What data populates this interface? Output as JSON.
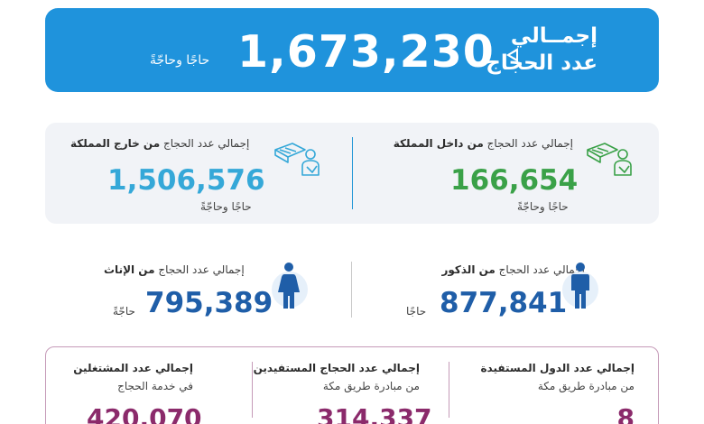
{
  "banner": {
    "title_line1": "إجمــالي",
    "title_line2": "عدد الحجاج",
    "total": "1,673,230",
    "unit": "حاجًا وحاجّةً",
    "bg_color": "#1f93dc"
  },
  "origin": {
    "inside": {
      "label_prefix": "إجمالي عدد الحجاج",
      "label_bold": "من داخل المملكة",
      "value": "166,654",
      "unit": "حاجًا وحاجّةً",
      "color": "#3aa148",
      "icon": "pilgrim-luggage-icon"
    },
    "outside": {
      "label_prefix": "إجمالي عدد الحجاج",
      "label_bold": "من خارج المملكة",
      "value": "1,506,576",
      "unit": "حاجًا وحاجّةً",
      "color": "#35a8d8",
      "icon": "pilgrim-luggage-icon"
    }
  },
  "gender": {
    "male": {
      "label_prefix": "إجمالي عدد الحجاج",
      "label_bold": "من الذكور",
      "value": "877,841",
      "unit": "حاجًا",
      "color": "#1f5ea8",
      "icon": "male-icon"
    },
    "female": {
      "label_prefix": "إجمالي عدد الحجاج",
      "label_bold": "من الإناث",
      "value": "795,389",
      "unit": "حاجّةً",
      "color": "#1f5ea8",
      "icon": "female-icon"
    }
  },
  "bottom": {
    "countries": {
      "title": "إجمالي عدد الدول المستفيدة",
      "sub": "من مبادرة طريق مكة",
      "value": "8"
    },
    "beneficiaries": {
      "title": "إجمالي عدد الحجاج المستفيدين",
      "sub": "من مبادرة طريق مكة",
      "value": "314,337"
    },
    "workers": {
      "title": "إجمالي عدد المشتغلين",
      "sub": "في خدمة الحجاج",
      "value": "420,070"
    },
    "accent_color": "#8b2a6b"
  }
}
